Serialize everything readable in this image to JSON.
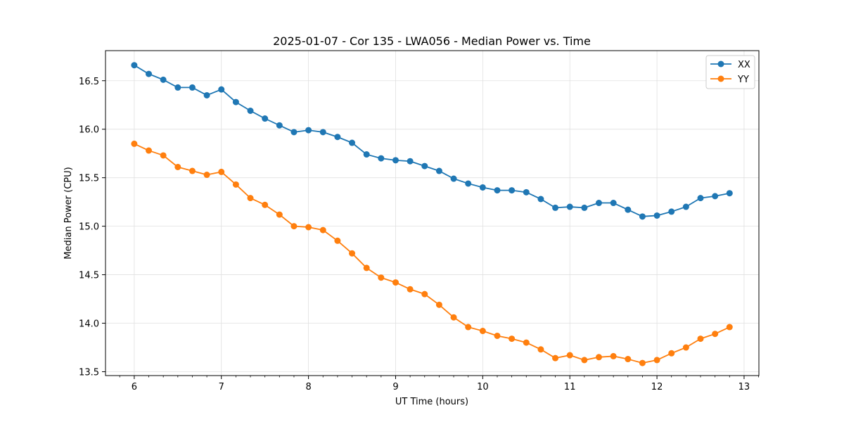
{
  "chart_data": {
    "type": "line",
    "title": "2025-01-07 - Cor 135 - LWA056 - Median Power vs. Time",
    "xlabel": "UT Time (hours)",
    "ylabel": "Median Power (CPU)",
    "xlim": [
      5.67,
      13.17
    ],
    "ylim": [
      13.46,
      16.81
    ],
    "xticks": [
      6,
      7,
      8,
      9,
      10,
      11,
      12,
      13
    ],
    "yticks": [
      13.5,
      14.0,
      14.5,
      15.0,
      15.5,
      16.0,
      16.5
    ],
    "grid": true,
    "legend": "top-right",
    "x": [
      6.0,
      6.1667,
      6.3333,
      6.5,
      6.6667,
      6.8333,
      7.0,
      7.1667,
      7.3333,
      7.5,
      7.6667,
      7.8333,
      8.0,
      8.1667,
      8.3333,
      8.5,
      8.6667,
      8.8333,
      9.0,
      9.1667,
      9.3333,
      9.5,
      9.6667,
      9.8333,
      10.0,
      10.1667,
      10.3333,
      10.5,
      10.6667,
      10.8333,
      11.0,
      11.1667,
      11.3333,
      11.5,
      11.6667,
      11.8333,
      12.0,
      12.1667,
      12.3333,
      12.5,
      12.6667,
      12.8333
    ],
    "series": [
      {
        "name": "XX",
        "color": "#1f77b4",
        "values": [
          16.66,
          16.57,
          16.51,
          16.43,
          16.43,
          16.35,
          16.41,
          16.28,
          16.19,
          16.11,
          16.04,
          15.97,
          15.99,
          15.97,
          15.92,
          15.86,
          15.74,
          15.7,
          15.68,
          15.67,
          15.62,
          15.57,
          15.49,
          15.44,
          15.4,
          15.37,
          15.37,
          15.35,
          15.28,
          15.19,
          15.2,
          15.19,
          15.24,
          15.24,
          15.17,
          15.1,
          15.11,
          15.15,
          15.2,
          15.29,
          15.31,
          15.34
        ]
      },
      {
        "name": "YY",
        "color": "#ff7f0e",
        "values": [
          15.85,
          15.78,
          15.73,
          15.61,
          15.57,
          15.53,
          15.56,
          15.43,
          15.29,
          15.22,
          15.12,
          15.0,
          14.99,
          14.96,
          14.85,
          14.72,
          14.57,
          14.47,
          14.42,
          14.35,
          14.3,
          14.19,
          14.06,
          13.96,
          13.92,
          13.87,
          13.84,
          13.8,
          13.73,
          13.64,
          13.67,
          13.62,
          13.65,
          13.66,
          13.63,
          13.59,
          13.62,
          13.69,
          13.75,
          13.84,
          13.89,
          13.96
        ]
      }
    ]
  }
}
